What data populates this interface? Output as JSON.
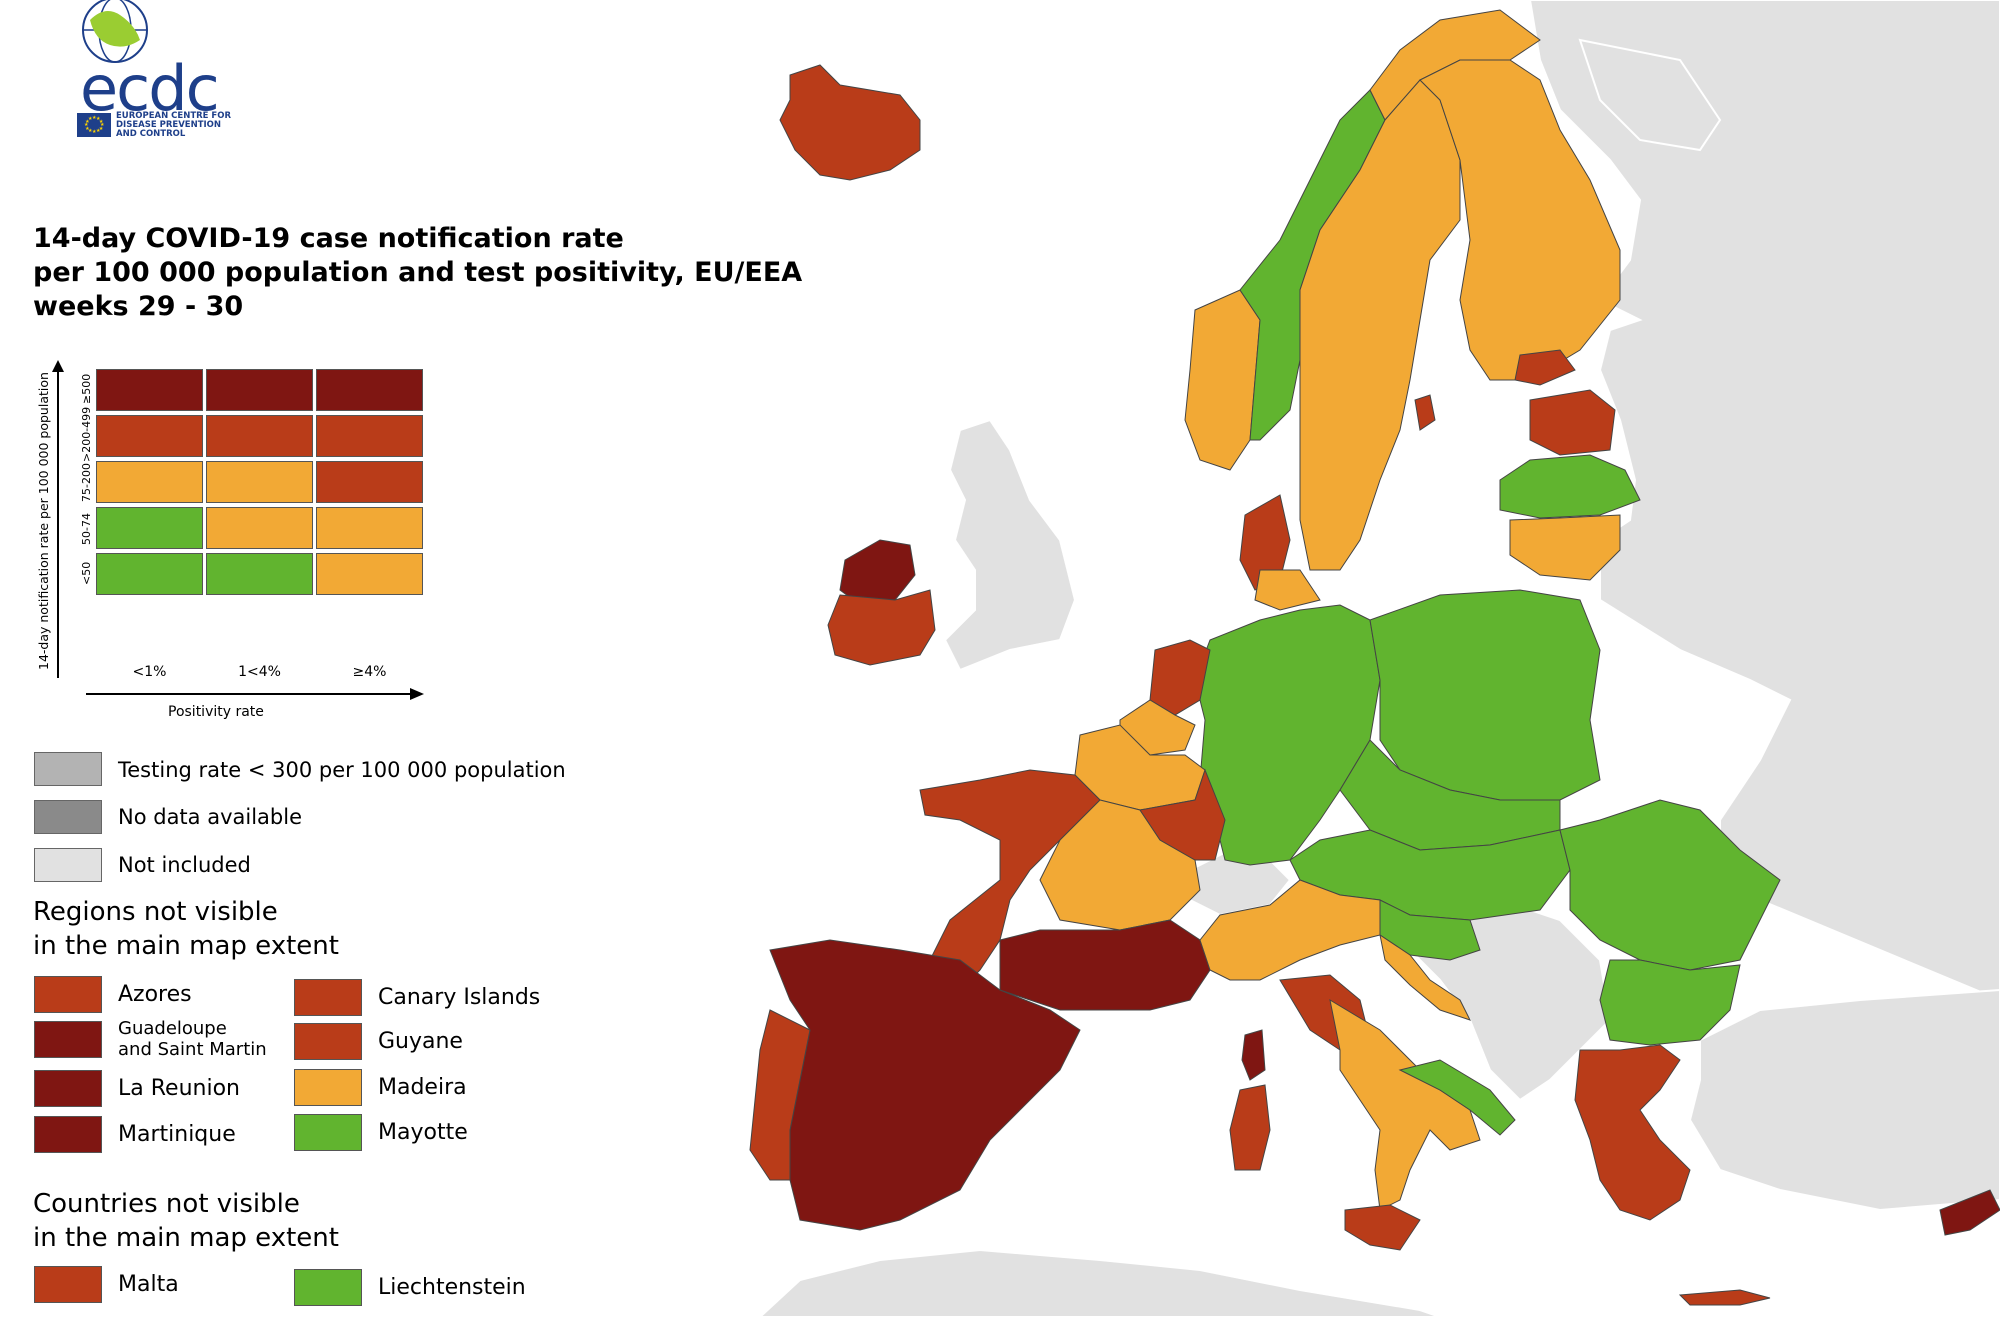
{
  "organization": {
    "acronym": "ecdc",
    "full_name_line1": "EUROPEAN CENTRE FOR",
    "full_name_line2": "DISEASE PREVENTION",
    "full_name_line3": "AND CONTROL"
  },
  "title": {
    "line1": "14-day COVID-19 case notification rate",
    "line2": "per 100 000 population and test positivity, EU/EEA",
    "line3": "weeks 29 - 30"
  },
  "matrix": {
    "y_axis_title": "14-day notification rate per 100 000 population",
    "x_axis_title": "Positivity rate",
    "rows": [
      "≥500",
      ">200-499",
      "75-200",
      "50-74",
      "<50"
    ],
    "cols": [
      "<1%",
      "1<4%",
      "≥4%"
    ],
    "colors": [
      [
        "#7f1612",
        "#7f1612",
        "#7f1612"
      ],
      [
        "#b93c19",
        "#b93c19",
        "#b93c19"
      ],
      [
        "#f2a935",
        "#f2a935",
        "#b93c19"
      ],
      [
        "#61b42f",
        "#f2a935",
        "#f2a935"
      ],
      [
        "#61b42f",
        "#61b42f",
        "#f2a935"
      ]
    ]
  },
  "colors": {
    "dark_red": "#7f1612",
    "red": "#b93c19",
    "orange": "#f2a935",
    "green": "#61b42f",
    "testing_low": "#b3b3b3",
    "no_data": "#8a8a8a",
    "not_included": "#e1e1e1",
    "sea": "#ffffff"
  },
  "key": [
    {
      "label": "Testing rate < 300 per 100 000 population",
      "color": "#b3b3b3"
    },
    {
      "label": "No data available",
      "color": "#8a8a8a"
    },
    {
      "label": "Not included",
      "color": "#e1e1e1"
    }
  ],
  "regions_section": {
    "title_line1": "Regions not visible",
    "title_line2": "in the main map extent",
    "left": [
      {
        "label": "Azores",
        "color": "#b93c19"
      },
      {
        "label": "Guadeloupe",
        "label2": "and Saint Martin",
        "color": "#7f1612"
      },
      {
        "label": "La Reunion",
        "color": "#7f1612"
      },
      {
        "label": "Martinique",
        "color": "#7f1612"
      }
    ],
    "right": [
      {
        "label": "Canary Islands",
        "color": "#b93c19"
      },
      {
        "label": "Guyane",
        "color": "#b93c19"
      },
      {
        "label": "Madeira",
        "color": "#f2a935"
      },
      {
        "label": "Mayotte",
        "color": "#61b42f"
      }
    ]
  },
  "countries_section": {
    "title_line1": "Countries not visible",
    "title_line2": "in the main map extent",
    "items": [
      {
        "label": "Malta",
        "color": "#b93c19"
      },
      {
        "label": "Liechtenstein",
        "color": "#61b42f"
      }
    ]
  }
}
